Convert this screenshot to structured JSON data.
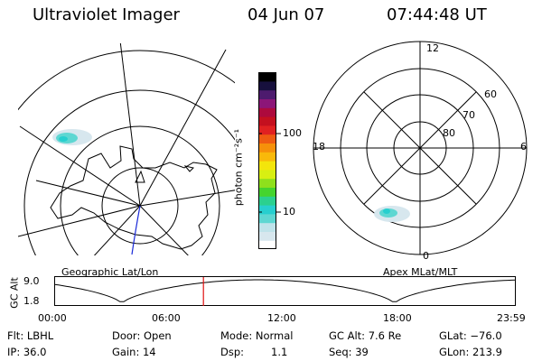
{
  "header": {
    "title": "Ultraviolet Imager",
    "date": "04 Jun 07",
    "time": "07:44:48 UT"
  },
  "colorbar": {
    "label": "photon cm⁻²s⁻¹",
    "ticks": [
      "100",
      "10"
    ],
    "colors": [
      "#ffffff",
      "#d7e7ee",
      "#bfe3ea",
      "#5ed7d2",
      "#27cfcf",
      "#2bd08f",
      "#45d42e",
      "#8fe01c",
      "#d8ef12",
      "#f3e50c",
      "#f9b90a",
      "#f6900a",
      "#ee5b12",
      "#e02121",
      "#c4101f",
      "#ad0a3d",
      "#8c1678",
      "#4d1b6e",
      "#17103d",
      "#000000"
    ]
  },
  "left_map": {
    "caption": "Geographic Lat/Lon"
  },
  "right_map": {
    "caption": "Apex MLat/MLT",
    "mlt_labels": {
      "top": "12",
      "left": "18",
      "right": "6",
      "bottom": "0"
    },
    "lat_labels": [
      "60",
      "70",
      "80"
    ]
  },
  "timeline": {
    "y_label": "GC Alt",
    "y_ticks": [
      "9.0",
      "1.8"
    ],
    "x_ticks": [
      "00:00",
      "06:00",
      "12:00",
      "18:00",
      "23:59"
    ],
    "x_range_hours": [
      0,
      24
    ],
    "y_range": [
      1.8,
      9.0
    ],
    "current_hour": 7.75
  },
  "status": {
    "row1": {
      "flt": "Flt: LBHL",
      "door": "Door: Open",
      "mode": "Mode: Normal",
      "gcalt": "GC Alt: 7.6 Re",
      "glat": "GLat: −76.0"
    },
    "row2": {
      "ip": "IP: 36.0",
      "gain": "Gain: 14",
      "dsp_label": "Dsp:",
      "dsp_value": "1.1",
      "seq": "Seq: 39",
      "glon": "GLon: 213.9"
    }
  }
}
